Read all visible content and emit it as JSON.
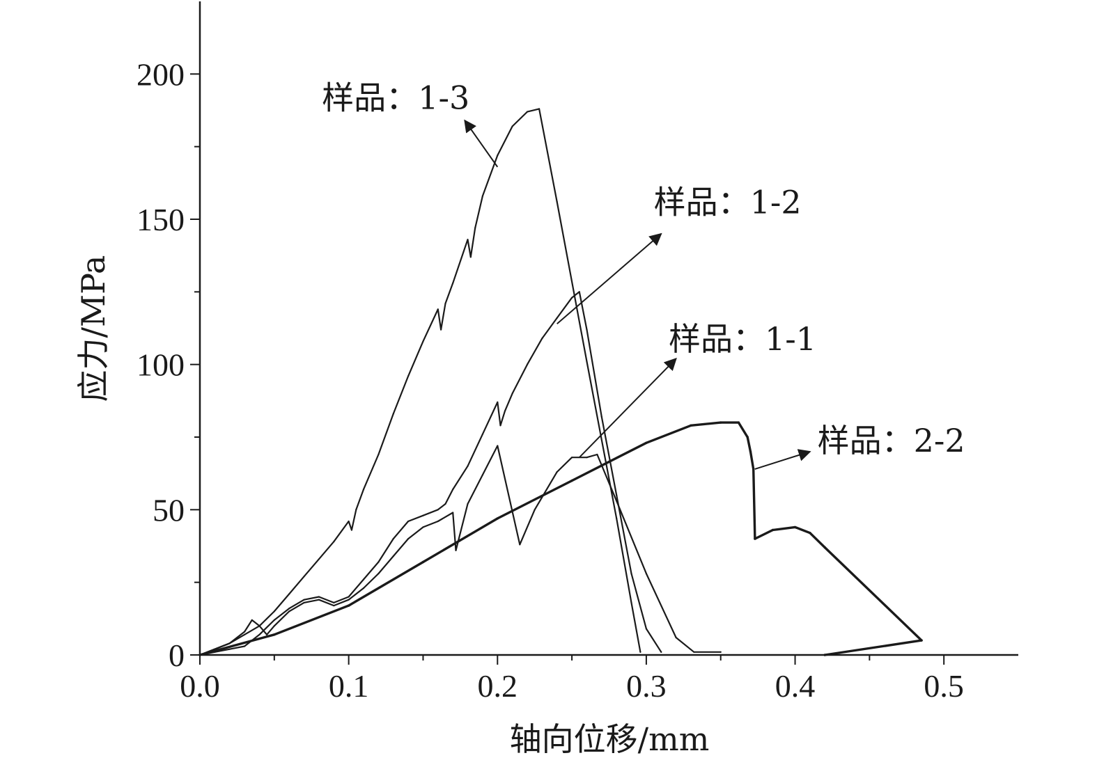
{
  "chart_data": {
    "type": "line",
    "xlabel": "轴向位移/mm",
    "ylabel": "应力/MPa",
    "xlim": [
      0,
      0.55
    ],
    "ylim": [
      0,
      225
    ],
    "xticks": [
      "0.0",
      "0.1",
      "0.2",
      "0.3",
      "0.4",
      "0.5"
    ],
    "yticks": [
      "0",
      "50",
      "100",
      "150",
      "200"
    ],
    "grid": false,
    "legend": "none",
    "series": [
      {
        "name": "样品：1-3",
        "x": [
          0.0,
          0.01,
          0.02,
          0.03,
          0.04,
          0.05,
          0.06,
          0.07,
          0.08,
          0.09,
          0.1,
          0.102,
          0.105,
          0.11,
          0.12,
          0.13,
          0.14,
          0.15,
          0.16,
          0.162,
          0.165,
          0.17,
          0.18,
          0.182,
          0.185,
          0.19,
          0.2,
          0.21,
          0.22,
          0.228,
          0.24,
          0.26,
          0.28,
          0.29,
          0.296
        ],
        "y": [
          0,
          2,
          4,
          7,
          10,
          15,
          21,
          27,
          33,
          39,
          46,
          43,
          50,
          57,
          69,
          83,
          96,
          108,
          119,
          112,
          121,
          128,
          143,
          137,
          147,
          158,
          172,
          182,
          187,
          188,
          156,
          101,
          47,
          18,
          1
        ],
        "stroke_width": 2.2
      },
      {
        "name": "样品：1-2",
        "x": [
          0.0,
          0.01,
          0.02,
          0.03,
          0.04,
          0.05,
          0.06,
          0.07,
          0.08,
          0.09,
          0.1,
          0.11,
          0.12,
          0.13,
          0.14,
          0.15,
          0.16,
          0.165,
          0.17,
          0.18,
          0.19,
          0.2,
          0.202,
          0.205,
          0.21,
          0.22,
          0.23,
          0.24,
          0.25,
          0.255,
          0.26,
          0.27,
          0.28,
          0.29,
          0.3,
          0.31
        ],
        "y": [
          0,
          1,
          2,
          3,
          7,
          12,
          16,
          19,
          20,
          18,
          20,
          26,
          32,
          40,
          46,
          48,
          50,
          52,
          57,
          65,
          76,
          87,
          79,
          84,
          90,
          100,
          109,
          116,
          123,
          125,
          112,
          82,
          55,
          28,
          9,
          1
        ],
        "stroke_width": 2.2
      },
      {
        "name": "样品：1-1",
        "x": [
          0.0,
          0.01,
          0.02,
          0.03,
          0.035,
          0.04,
          0.045,
          0.05,
          0.06,
          0.07,
          0.08,
          0.09,
          0.1,
          0.11,
          0.12,
          0.13,
          0.14,
          0.15,
          0.16,
          0.17,
          0.172,
          0.18,
          0.19,
          0.2,
          0.215,
          0.225,
          0.24,
          0.25,
          0.26,
          0.267,
          0.28,
          0.3,
          0.32,
          0.332,
          0.35
        ],
        "y": [
          0,
          2,
          4,
          8,
          12,
          10,
          7,
          10,
          15,
          18,
          19,
          17,
          19,
          23,
          28,
          34,
          40,
          44,
          46,
          49,
          36,
          52,
          62,
          72,
          38,
          50,
          63,
          68,
          68,
          69,
          53,
          28,
          6,
          1,
          1
        ],
        "stroke_width": 2.2
      },
      {
        "name": "样品：2-2",
        "x": [
          0.0,
          0.05,
          0.1,
          0.15,
          0.2,
          0.25,
          0.3,
          0.33,
          0.35,
          0.362,
          0.368,
          0.37,
          0.372,
          0.373,
          0.385,
          0.4,
          0.41,
          0.42,
          0.485,
          0.42
        ],
        "y": [
          0,
          7,
          17,
          32,
          47,
          60,
          73,
          79,
          80,
          80,
          75,
          70,
          64,
          40,
          43,
          44,
          42,
          37,
          5,
          0
        ],
        "stroke_width": 3.4
      }
    ],
    "annotations": [
      {
        "text": "样品：1-3",
        "series": "样品：1-3",
        "label_at": [
          0.082,
          188
        ],
        "arrow_from": [
          0.2,
          168
        ],
        "arrow_to": [
          0.178,
          184
        ]
      },
      {
        "text": "样品：1-2",
        "series": "样品：1-2",
        "label_at": [
          0.305,
          152
        ],
        "arrow_from": [
          0.24,
          114
        ],
        "arrow_to": [
          0.31,
          145
        ]
      },
      {
        "text": "样品：1-1",
        "series": "样品：1-1",
        "label_at": [
          0.315,
          105
        ],
        "arrow_from": [
          0.255,
          68
        ],
        "arrow_to": [
          0.32,
          102
        ]
      },
      {
        "text": "样品：2-2",
        "series": "样品：2-2",
        "label_at": [
          0.415,
          70
        ],
        "arrow_from": [
          0.373,
          64
        ],
        "arrow_to": [
          0.41,
          70
        ]
      }
    ]
  }
}
